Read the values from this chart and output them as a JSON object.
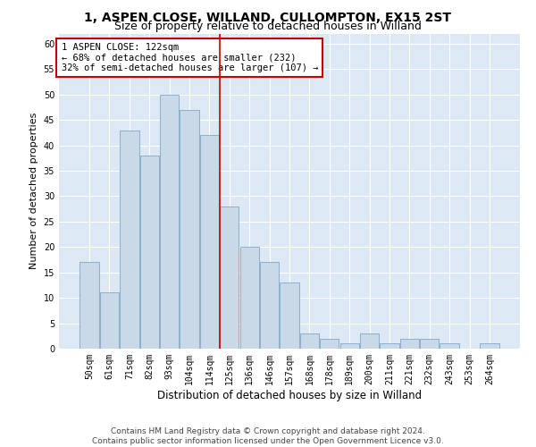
{
  "title": "1, ASPEN CLOSE, WILLAND, CULLOMPTON, EX15 2ST",
  "subtitle": "Size of property relative to detached houses in Willand",
  "xlabel": "Distribution of detached houses by size in Willand",
  "ylabel": "Number of detached properties",
  "categories": [
    "50sqm",
    "61sqm",
    "71sqm",
    "82sqm",
    "93sqm",
    "104sqm",
    "114sqm",
    "125sqm",
    "136sqm",
    "146sqm",
    "157sqm",
    "168sqm",
    "178sqm",
    "189sqm",
    "200sqm",
    "211sqm",
    "221sqm",
    "232sqm",
    "243sqm",
    "253sqm",
    "264sqm"
  ],
  "values": [
    17,
    11,
    43,
    38,
    50,
    47,
    42,
    28,
    20,
    17,
    13,
    3,
    2,
    1,
    3,
    1,
    2,
    2,
    1,
    0,
    1
  ],
  "bar_color": "#c9d9e8",
  "bar_edge_color": "#7fa8c9",
  "vline_x_index": 7,
  "vline_color": "#cc0000",
  "annotation_text": "1 ASPEN CLOSE: 122sqm\n← 68% of detached houses are smaller (232)\n32% of semi-detached houses are larger (107) →",
  "annotation_box_color": "#ffffff",
  "annotation_box_edge": "#cc0000",
  "ylim": [
    0,
    62
  ],
  "yticks": [
    0,
    5,
    10,
    15,
    20,
    25,
    30,
    35,
    40,
    45,
    50,
    55,
    60
  ],
  "bg_color": "#dce9f5",
  "footer": "Contains HM Land Registry data © Crown copyright and database right 2024.\nContains public sector information licensed under the Open Government Licence v3.0.",
  "title_fontsize": 10,
  "subtitle_fontsize": 9,
  "xlabel_fontsize": 8.5,
  "ylabel_fontsize": 8,
  "tick_fontsize": 7,
  "annotation_fontsize": 7.5,
  "footer_fontsize": 6.5
}
